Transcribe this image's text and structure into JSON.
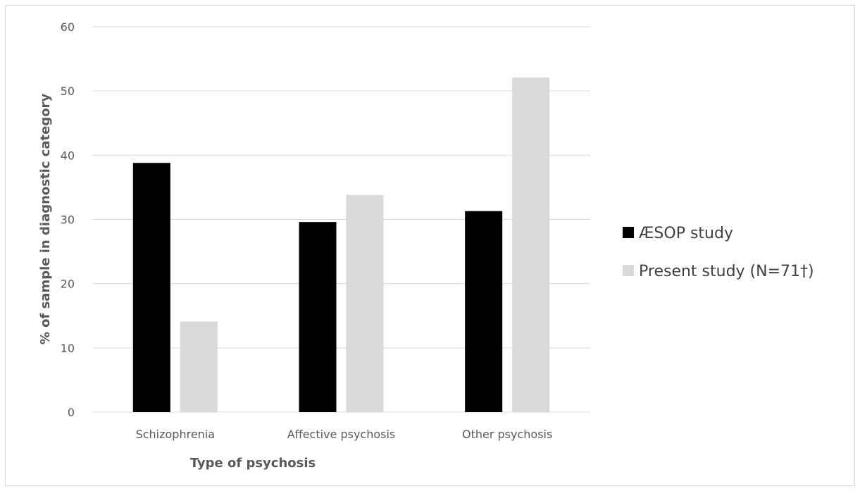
{
  "chart_data": {
    "type": "bar",
    "title": "",
    "xlabel": "Type of psychosis",
    "ylabel": "% of sample in diagnostic category",
    "categories": [
      "Schizophrenia",
      "Affective psychosis",
      "Other psychosis"
    ],
    "series": [
      {
        "name": "ÆSOP  study",
        "values": [
          38.8,
          29.6,
          31.3
        ],
        "color": "#000000"
      },
      {
        "name": "Present study (N=71†)",
        "values": [
          14.1,
          33.8,
          52.1
        ],
        "color": "#d9d9d9"
      }
    ],
    "ylim": [
      0,
      60
    ],
    "yticks": [
      "0",
      "10",
      "20",
      "30",
      "40",
      "50",
      "60"
    ],
    "grid": true,
    "legend_position": "right",
    "gridline_color": "#d9d9d9"
  }
}
